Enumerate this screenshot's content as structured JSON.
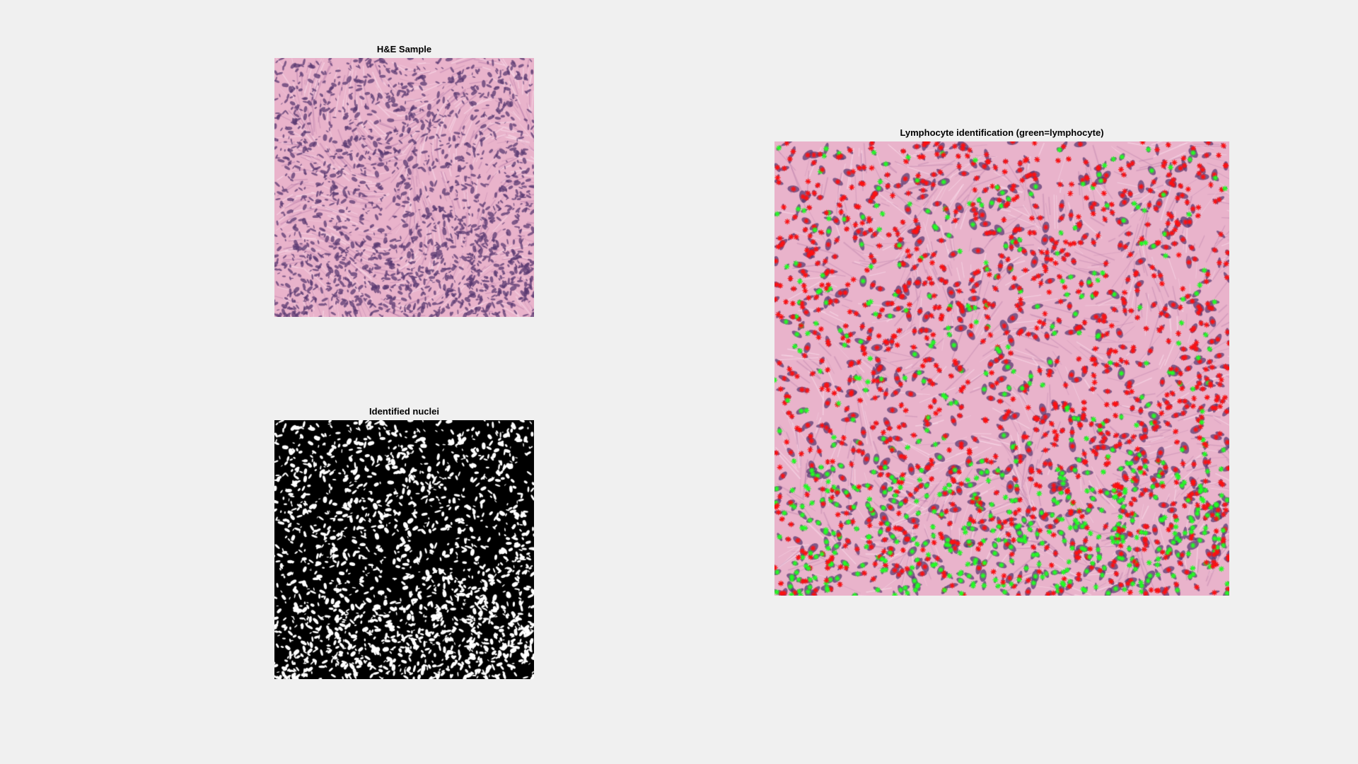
{
  "window": {
    "background": "#f0f0f0"
  },
  "panels": {
    "he": {
      "title": "H&E Sample"
    },
    "nuclei": {
      "title": "Identified nuclei"
    },
    "lymph": {
      "title": "Lymphocyte identification (green=lymphocyte)",
      "marker_colors": {
        "lymphocyte": "#22ff22",
        "other": "#ff1010"
      }
    }
  },
  "colors": {
    "tissue_pink": "#e9b3cb",
    "nucleus_purple": "#5a3a72",
    "mask_foreground": "#ffffff",
    "mask_background": "#000000"
  }
}
